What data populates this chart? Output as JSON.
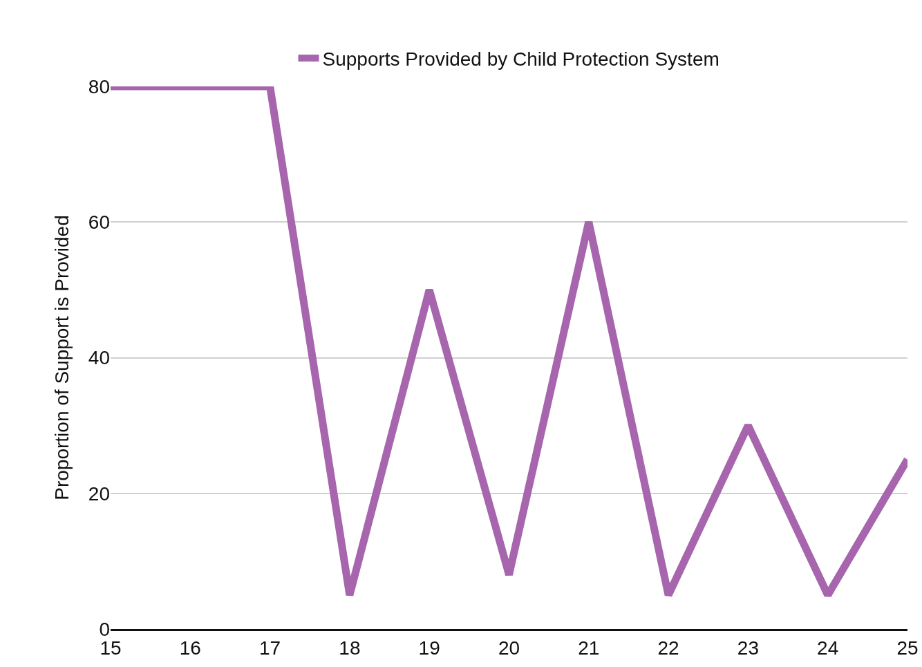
{
  "chart_data": {
    "type": "line",
    "ylabel": "Proportion of Support is Provided",
    "x": [
      15,
      16,
      17,
      18,
      19,
      20,
      21,
      22,
      23,
      24,
      25
    ],
    "series": [
      {
        "name": "Supports Provided by Child Protection System",
        "color": "#a665ad",
        "values": [
          80,
          80,
          80,
          5,
          50,
          8,
          60,
          5,
          30,
          5,
          25
        ]
      }
    ],
    "xlim": [
      15,
      25
    ],
    "xticks": [
      15,
      16,
      17,
      18,
      19,
      20,
      21,
      22,
      23,
      24,
      25
    ],
    "ylim": [
      0,
      80
    ],
    "yticks": [
      0,
      20,
      40,
      60,
      80
    ],
    "grid": "y",
    "legend": "top",
    "marker": "none",
    "line_style": "solid"
  }
}
